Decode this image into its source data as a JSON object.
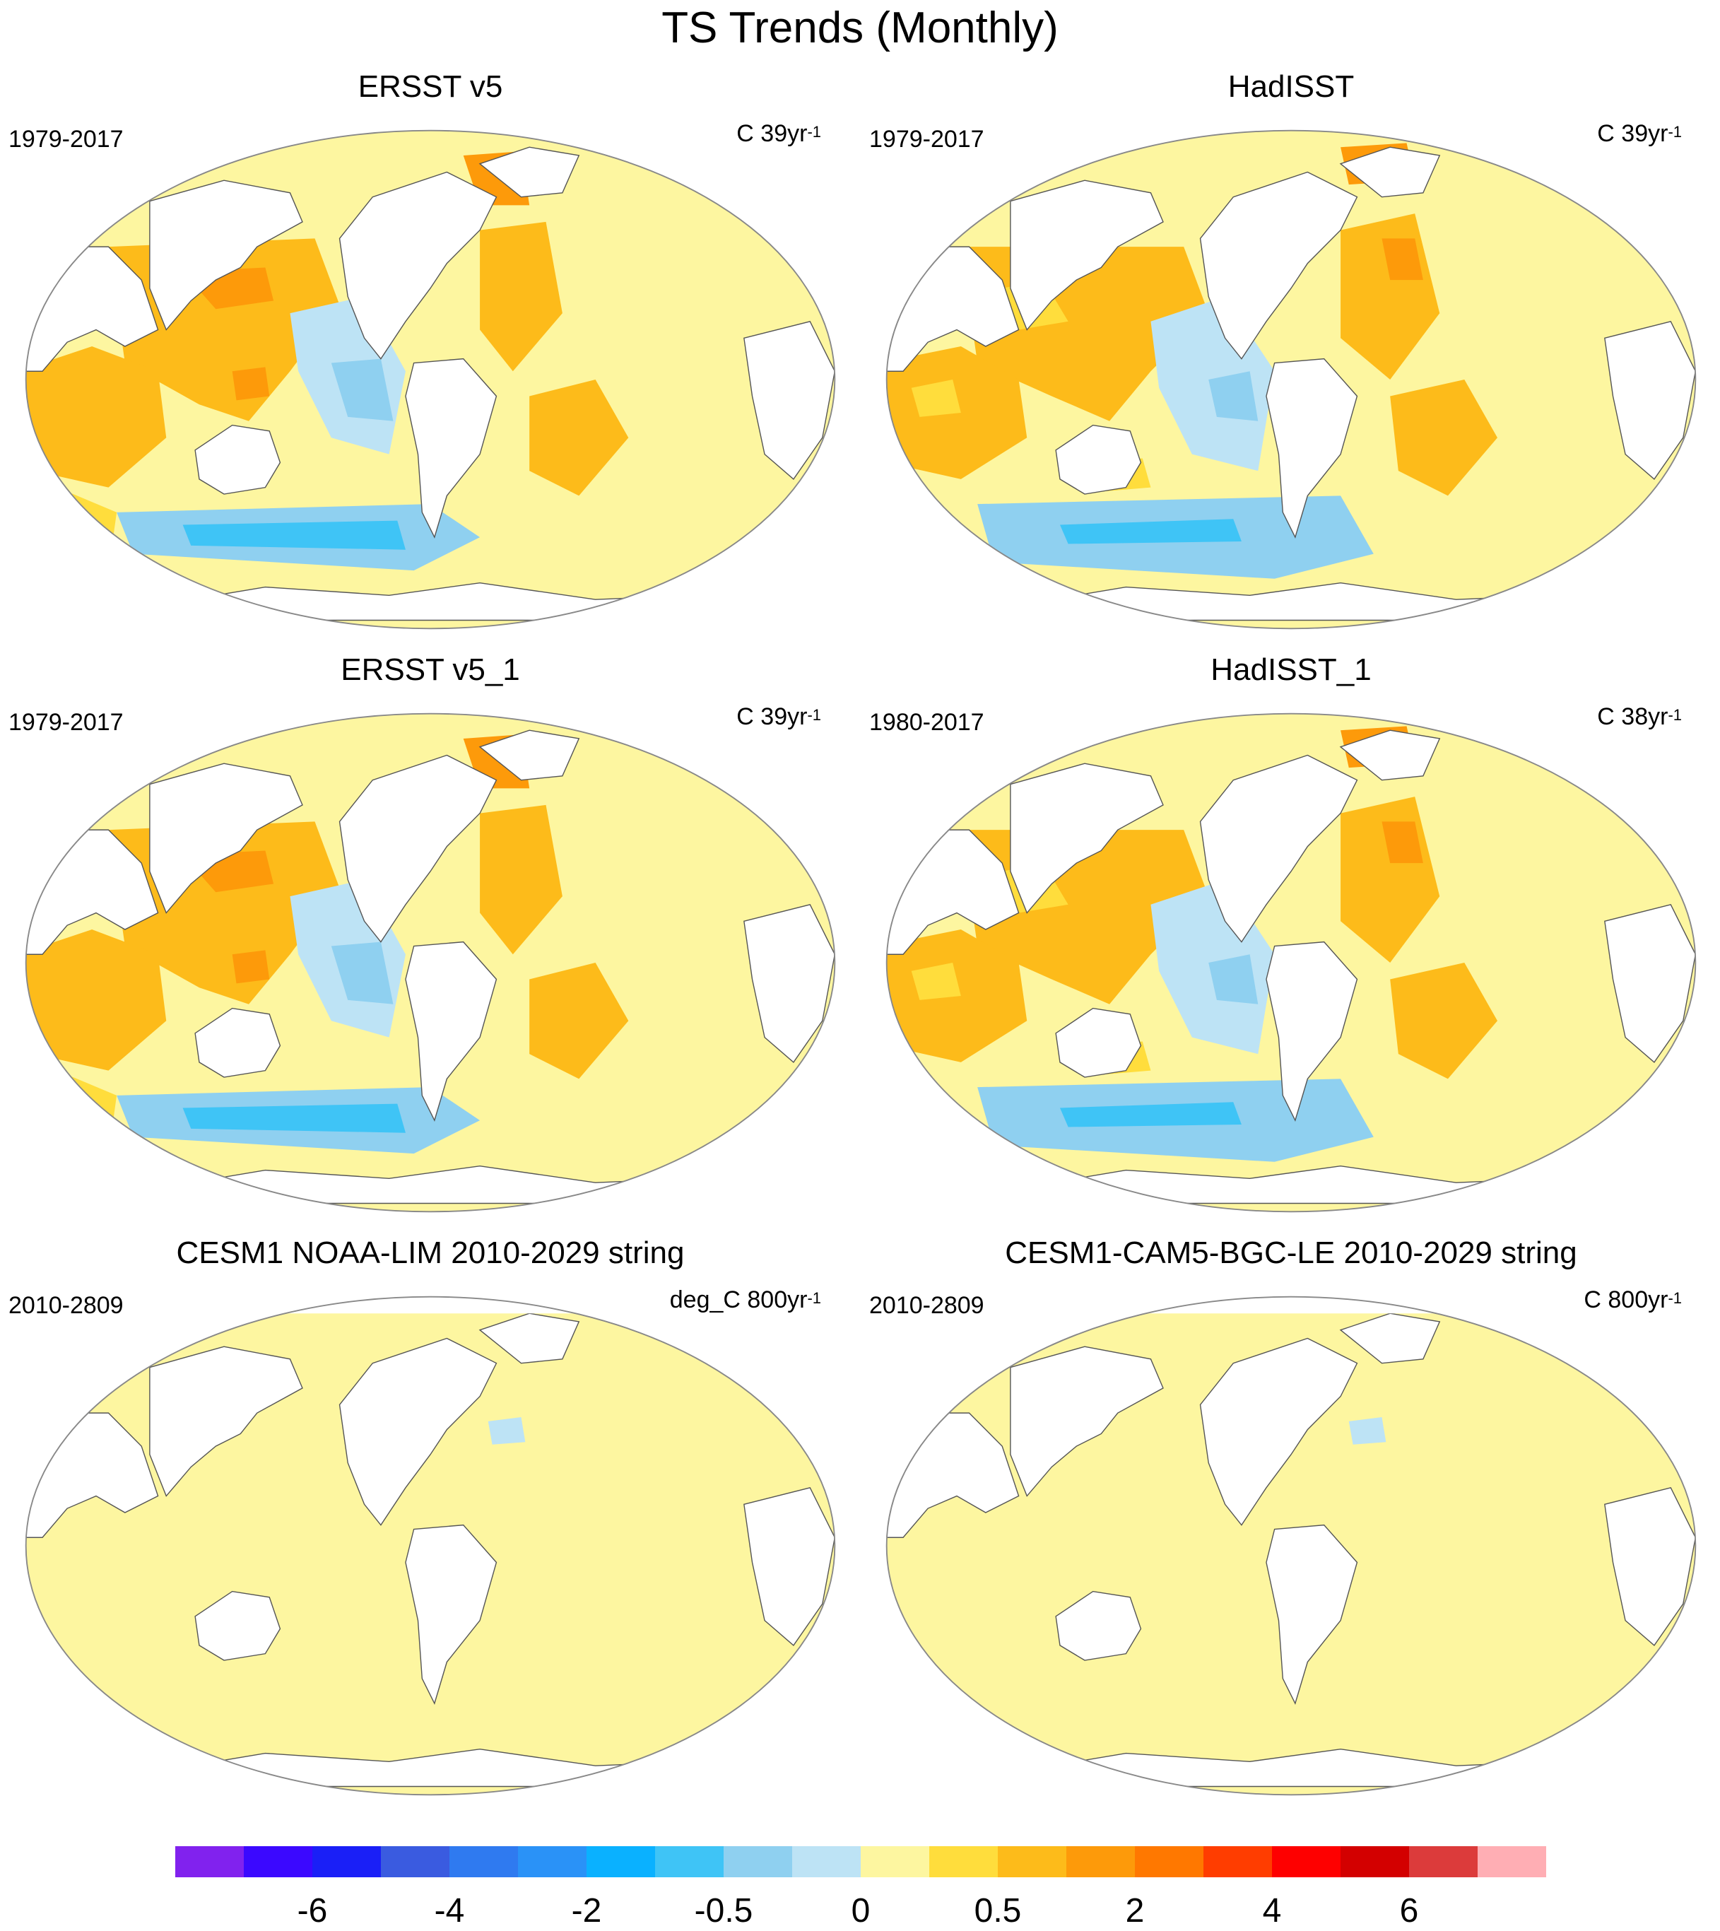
{
  "title": "TS Trends (Monthly)",
  "panels": [
    {
      "id": "ersst",
      "title": "ERSST v5",
      "period": "1979-2017",
      "units": "C 39yr",
      "exponent": "-1",
      "style": "obs-smooth"
    },
    {
      "id": "hadisst",
      "title": "HadISST",
      "period": "1979-2017",
      "units": "C 39yr",
      "exponent": "-1",
      "style": "obs-noisy"
    },
    {
      "id": "ersst1",
      "title": "ERSST v5_1",
      "period": "1979-2017",
      "units": "C 39yr",
      "exponent": "-1",
      "style": "obs-smooth"
    },
    {
      "id": "hadisst1",
      "title": "HadISST_1",
      "period": "1980-2017",
      "units": "C 38yr",
      "exponent": "-1",
      "style": "obs-noisy"
    },
    {
      "id": "cesm-lim",
      "title": "CESM1 NOAA-LIM 2010-2029 string",
      "period": "2010-2809",
      "units": "deg_C 800yr",
      "exponent": "-1",
      "style": "flat"
    },
    {
      "id": "cesm-le",
      "title": "CESM1-CAM5-BGC-LE 2010-2029 string",
      "period": "2010-2809",
      "units": "C 800yr",
      "exponent": "-1",
      "style": "flat"
    }
  ],
  "colorbar": {
    "colors": [
      "#8122ee",
      "#3b08ff",
      "#1a1ff7",
      "#3a5be0",
      "#2f7af0",
      "#2a92f7",
      "#0ab1ff",
      "#3fc4f6",
      "#8fd0f0",
      "#bde3f5",
      "#fdf6a0",
      "#ffdd3c",
      "#fdbb1a",
      "#fd9a0a",
      "#ff7800",
      "#ff3d00",
      "#fe0000",
      "#d30000",
      "#dc3b3b",
      "#ffaeb4"
    ],
    "tick_labels": [
      "-6",
      "-4",
      "-2",
      "-0.5",
      "0",
      "0.5",
      "2",
      "4",
      "6"
    ],
    "levels": [
      -7,
      -6,
      -5,
      -4,
      -3,
      -2,
      -1,
      -0.5,
      -0.2,
      0,
      0.2,
      0.5,
      1,
      2,
      3,
      4,
      5,
      6,
      7
    ]
  }
}
